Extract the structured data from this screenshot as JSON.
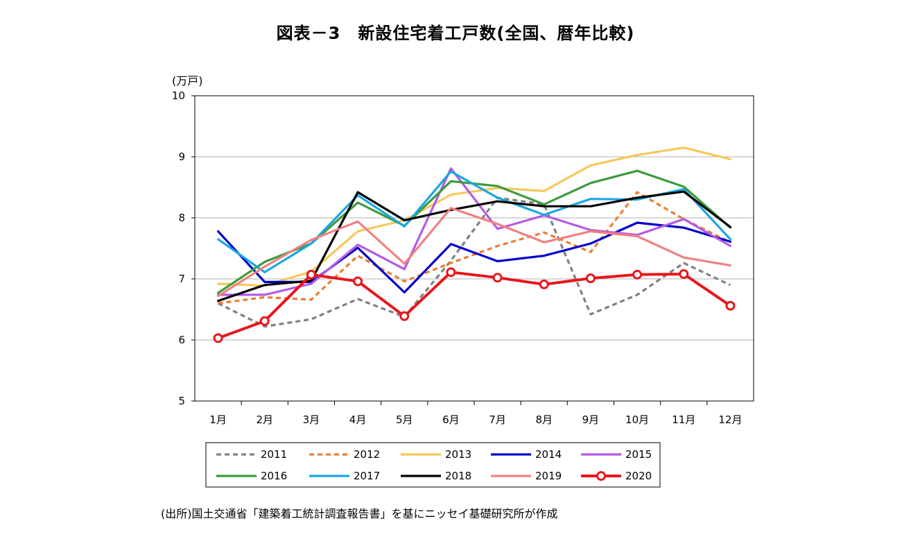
{
  "title": "図表－3　新設住宅着工戸数(全国、暦年比較)",
  "unit_label": "(万戸)",
  "source": "(出所)国土交通省「建築着工統計調査報告書」を基にニッセイ基礎研究所が作成",
  "chart_data": {
    "type": "line",
    "title": "図表－3　新設住宅着工戸数(全国、暦年比較)",
    "ylabel": "(万戸)",
    "xlabel": "",
    "ylim": [
      5,
      10
    ],
    "yticks": [
      5,
      6,
      7,
      8,
      9,
      10
    ],
    "grid": true,
    "legend_placement": "bottom",
    "categories": [
      "1月",
      "2月",
      "3月",
      "4月",
      "5月",
      "6月",
      "7月",
      "8月",
      "9月",
      "10月",
      "11月",
      "12月"
    ],
    "series": [
      {
        "name": "2011",
        "color": "#808080",
        "style": "dashed",
        "values": [
          6.6,
          6.22,
          6.34,
          6.67,
          6.38,
          7.3,
          8.33,
          8.22,
          6.42,
          6.74,
          7.26,
          6.9
        ]
      },
      {
        "name": "2012",
        "color": "#ED7D31",
        "style": "dashed",
        "values": [
          6.6,
          6.7,
          6.66,
          7.38,
          6.96,
          7.26,
          7.54,
          7.76,
          7.44,
          8.42,
          7.98,
          7.6
        ]
      },
      {
        "name": "2013",
        "color": "#F5C85A",
        "style": "solid",
        "values": [
          6.92,
          6.89,
          7.12,
          7.78,
          7.96,
          8.38,
          8.49,
          8.44,
          8.86,
          9.03,
          9.15,
          8.96
        ]
      },
      {
        "name": "2014",
        "color": "#0000CC",
        "style": "solid",
        "values": [
          7.78,
          6.95,
          6.95,
          7.51,
          6.78,
          7.57,
          7.29,
          7.38,
          7.58,
          7.92,
          7.84,
          7.61
        ]
      },
      {
        "name": "2015",
        "color": "#B45AE6",
        "style": "solid",
        "values": [
          6.74,
          6.74,
          6.92,
          7.56,
          7.16,
          8.81,
          7.82,
          8.04,
          7.8,
          7.72,
          7.98,
          7.54
        ]
      },
      {
        "name": "2016",
        "color": "#3C9A3C",
        "style": "solid",
        "values": [
          6.77,
          7.28,
          7.58,
          8.25,
          7.87,
          8.6,
          8.52,
          8.22,
          8.57,
          8.77,
          8.51,
          7.84
        ]
      },
      {
        "name": "2017",
        "color": "#1AA7E0",
        "style": "solid",
        "values": [
          7.65,
          7.11,
          7.58,
          8.37,
          7.86,
          8.76,
          8.33,
          8.05,
          8.31,
          8.3,
          8.47,
          7.65
        ]
      },
      {
        "name": "2018",
        "color": "#000000",
        "style": "solid",
        "values": [
          6.64,
          6.9,
          6.97,
          8.42,
          7.96,
          8.13,
          8.27,
          8.19,
          8.19,
          8.33,
          8.43,
          7.85
        ]
      },
      {
        "name": "2019",
        "color": "#F08080",
        "style": "solid",
        "values": [
          6.72,
          7.2,
          7.64,
          7.94,
          7.25,
          8.16,
          7.9,
          7.6,
          7.78,
          7.7,
          7.35,
          7.22
        ]
      },
      {
        "name": "2020",
        "color": "#E8161B",
        "style": "marker",
        "values": [
          6.03,
          6.31,
          7.07,
          6.96,
          6.39,
          7.11,
          7.02,
          6.91,
          7.01,
          7.07,
          7.08,
          6.56
        ]
      }
    ]
  }
}
